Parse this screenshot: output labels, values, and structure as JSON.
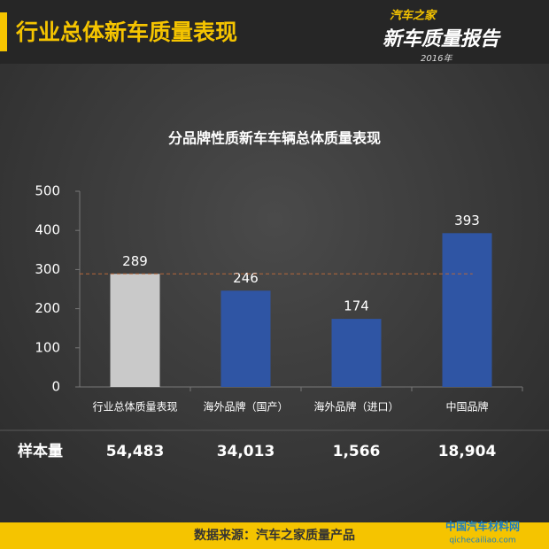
{
  "header": {
    "title": "行业总体新车质量表现",
    "logo_brand": "汽车之家",
    "logo_title": "新车质量报告",
    "logo_year": "2016年"
  },
  "chart_data": {
    "type": "bar",
    "title": "分品牌性质新车车辆总体质量表现",
    "categories": [
      "行业总体质量表现",
      "海外品牌（国产）",
      "海外品牌（进口）",
      "中国品牌"
    ],
    "values": [
      289,
      246,
      174,
      393
    ],
    "colors": [
      "#c9c9c9",
      "#2f55a4",
      "#2f55a4",
      "#2f55a4"
    ],
    "reference_line_color": "#b8683a",
    "ylim": [
      0,
      500
    ],
    "yticks": [
      0,
      100,
      200,
      300,
      400,
      500
    ]
  },
  "sample_row": {
    "label": "样本量",
    "values": [
      "54,483",
      "34,013",
      "1,566",
      "18,904"
    ]
  },
  "footer": {
    "source": "数据来源：汽车之家质量产品",
    "watermark": "中国汽车材料网",
    "watermark_url": "qichecailiao.com"
  }
}
